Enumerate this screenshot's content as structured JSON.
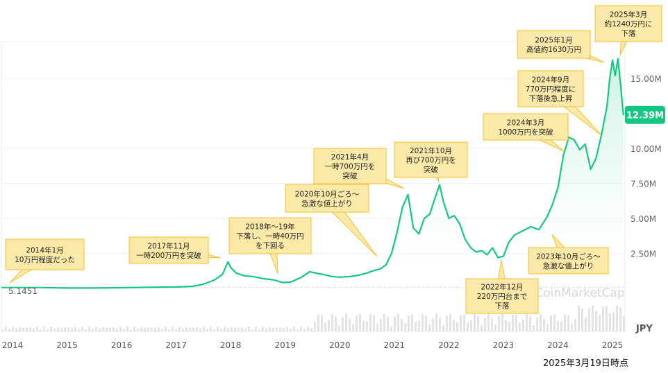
{
  "chart_data": {
    "type": "area",
    "currency": "JPY",
    "start_label": "5.1451",
    "current_label": "12.39M",
    "watermark": "CoinMarketCap",
    "y_ticks": [
      "2.50M",
      "5.00M",
      "7.50M",
      "10.00M",
      "15.00M"
    ],
    "y_tick_values": [
      2.5,
      5.0,
      7.5,
      10.0,
      15.0
    ],
    "ylim": [
      0,
      17.5
    ],
    "x_ticks": [
      "2014",
      "2015",
      "2016",
      "2017",
      "2018",
      "2019",
      "2020",
      "2021",
      "2022",
      "2023",
      "2024",
      "2025"
    ],
    "x_tick_values": [
      2014,
      2015,
      2016,
      2017,
      2018,
      2019,
      2020,
      2021,
      2022,
      2023,
      2024,
      2025
    ],
    "xlim": [
      2014.0,
      2025.3
    ],
    "series": [
      {
        "x": [
          2014.5,
          2015.0,
          2015.5,
          2016.0,
          2016.5,
          2017.0,
          2017.3,
          2017.5,
          2017.7,
          2017.85,
          2017.95,
          2018.0,
          2018.1,
          2018.25,
          2018.4,
          2018.6,
          2018.8,
          2018.95,
          2019.1,
          2019.3,
          2019.45,
          2019.55,
          2019.7,
          2019.85,
          2020.0,
          2020.2,
          2020.35,
          2020.5,
          2020.6,
          2020.75,
          2020.85,
          2020.95,
          2021.05,
          2021.15,
          2021.25,
          2021.35,
          2021.45,
          2021.55,
          2021.65,
          2021.75,
          2021.83,
          2021.9,
          2022.0,
          2022.1,
          2022.2,
          2022.3,
          2022.4,
          2022.5,
          2022.6,
          2022.7,
          2022.8,
          2022.9,
          2023.0,
          2023.1,
          2023.2,
          2023.35,
          2023.5,
          2023.65,
          2023.8,
          2023.9,
          2024.0,
          2024.1,
          2024.2,
          2024.3,
          2024.4,
          2024.5,
          2024.6,
          2024.7,
          2024.8,
          2024.9,
          2024.95,
          2025.0,
          2025.05,
          2025.1,
          2025.15,
          2025.2
        ],
        "y": [
          0.06,
          0.03,
          0.03,
          0.05,
          0.08,
          0.1,
          0.15,
          0.3,
          0.6,
          1.0,
          1.9,
          1.5,
          1.1,
          0.9,
          0.85,
          0.7,
          0.6,
          0.42,
          0.45,
          0.8,
          1.2,
          1.1,
          1.0,
          0.85,
          0.8,
          0.85,
          0.95,
          1.1,
          1.25,
          1.4,
          1.7,
          2.5,
          4.0,
          5.8,
          6.7,
          4.3,
          3.9,
          5.0,
          5.3,
          6.5,
          7.4,
          6.2,
          5.0,
          5.2,
          4.6,
          3.5,
          2.9,
          2.6,
          2.7,
          2.4,
          2.9,
          2.2,
          2.3,
          3.3,
          3.8,
          4.1,
          4.4,
          4.2,
          5.1,
          6.0,
          7.2,
          9.5,
          10.8,
          10.6,
          9.9,
          10.3,
          8.5,
          9.3,
          11.0,
          13.0,
          15.0,
          16.3,
          15.2,
          16.4,
          14.5,
          12.39
        ]
      }
    ],
    "annotations": [
      {
        "lines": [
          "2014年1月",
          "10万円程度だった"
        ]
      },
      {
        "lines": [
          "2017年11月",
          "一時200万円を突破"
        ]
      },
      {
        "lines": [
          "2018年〜19年",
          "下落し、一時40万円",
          "を下回る"
        ]
      },
      {
        "lines": [
          "2020年10月ごろ〜",
          "急激な値上がり"
        ]
      },
      {
        "lines": [
          "2021年4月",
          "一時700万円を",
          "突破"
        ]
      },
      {
        "lines": [
          "2021年10月",
          "再び700万円を",
          "突破"
        ]
      },
      {
        "lines": [
          "2022年12月",
          "220万円台まで",
          "下落"
        ]
      },
      {
        "lines": [
          "2023年10月ごろ〜",
          "急激な値上がり"
        ]
      },
      {
        "lines": [
          "2024年3月",
          "1000万円を突破"
        ]
      },
      {
        "lines": [
          "2024年9月",
          "770万円程度に",
          "下落後急上昇"
        ]
      },
      {
        "lines": [
          "2025年1月",
          "高値約1630万円"
        ]
      },
      {
        "lines": [
          "2025年3月",
          "約1240万円に",
          "下落"
        ]
      }
    ]
  },
  "footer_note": "2025年3月19日時点",
  "colors": {
    "line": "#16c784",
    "fill_top": "#c6f1df",
    "fill_bottom": "#ffffff",
    "callout_bg": "#fae9a8",
    "callout_border": "#f2c230",
    "badge": "#16c784"
  }
}
